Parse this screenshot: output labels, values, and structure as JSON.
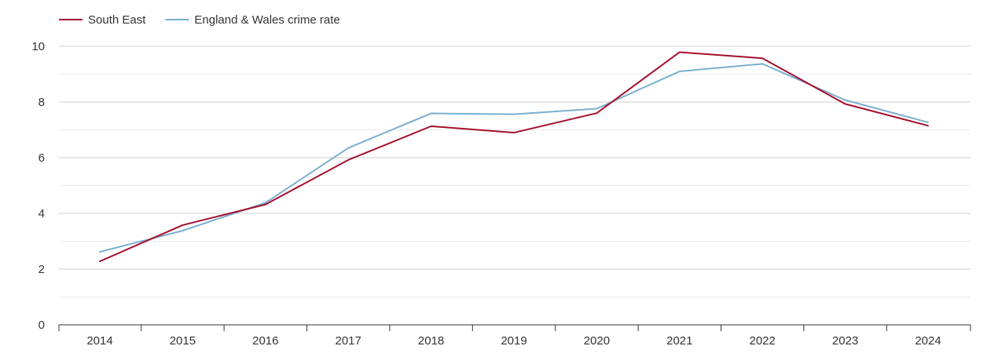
{
  "chart_data": {
    "type": "line",
    "title": "",
    "xlabel": "",
    "ylabel": "",
    "categories": [
      "2014",
      "2015",
      "2016",
      "2017",
      "2018",
      "2019",
      "2020",
      "2021",
      "2022",
      "2023",
      "2024"
    ],
    "ylim": [
      0,
      10
    ],
    "yticks": [
      0,
      2,
      4,
      6,
      8,
      10
    ],
    "y_minor_grid": [
      1,
      3,
      5,
      7,
      9
    ],
    "grid": true,
    "legend_position": "top-left",
    "series": [
      {
        "name": "South East",
        "color": "#a50f2d",
        "values": [
          2.28,
          3.58,
          4.32,
          5.92,
          7.13,
          6.9,
          7.6,
          9.79,
          9.57,
          7.93,
          7.15
        ]
      },
      {
        "name": "England & Wales crime rate",
        "color": "#7aafd0",
        "values": [
          2.62,
          3.38,
          4.38,
          6.35,
          7.59,
          7.56,
          7.76,
          9.1,
          9.37,
          8.07,
          7.27
        ]
      }
    ],
    "colors": {
      "major_grid": "#cccccc",
      "minor_grid": "#ebebeb",
      "axis": "#333333",
      "text": "#333333"
    }
  }
}
